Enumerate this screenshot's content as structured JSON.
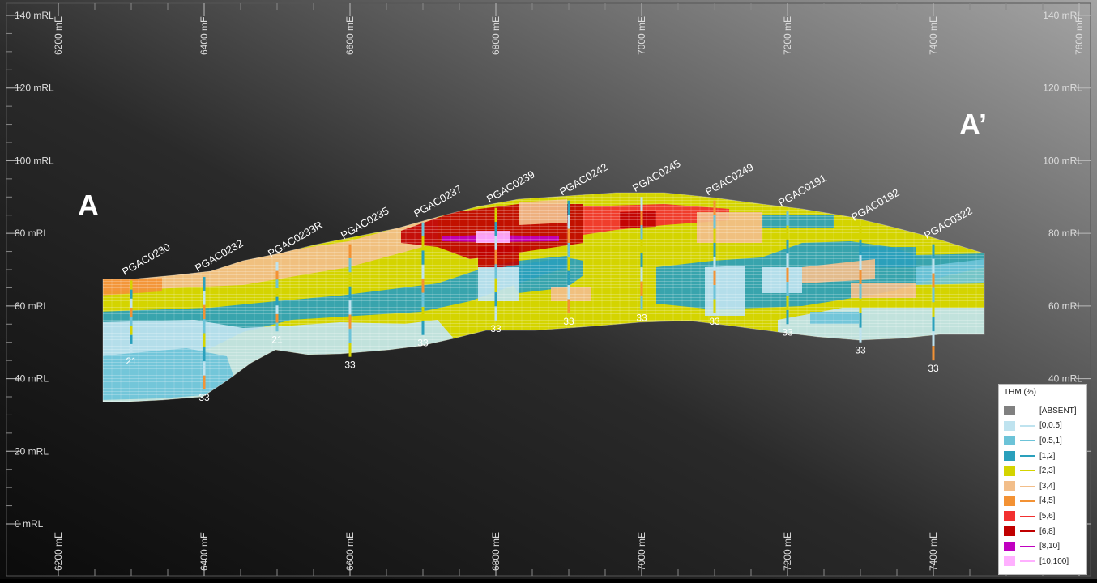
{
  "section": {
    "start_label": "A",
    "end_label": "A’"
  },
  "axes": {
    "x_ticks": [
      "6200 mE",
      "6400 mE",
      "6600 mE",
      "6800 mE",
      "7000 mE",
      "7200 mE",
      "7400 mE",
      "7600 mE"
    ],
    "x_values": [
      6200,
      6400,
      6600,
      6800,
      7000,
      7200,
      7400,
      7600
    ],
    "y_ticks": [
      "0 mRL",
      "20 mRL",
      "40 mRL",
      "60 mRL",
      "80 mRL",
      "100 mRL",
      "120 mRL",
      "140 mRL"
    ],
    "y_values": [
      0,
      20,
      40,
      60,
      80,
      100,
      120,
      140
    ],
    "xlim": [
      6140,
      7640
    ],
    "ylim": [
      -14,
      142
    ]
  },
  "drillholes": [
    {
      "id": "PGAC0230",
      "easting": 6300,
      "collar": 67,
      "depth_label": "21",
      "bottom": 47
    },
    {
      "id": "PGAC0232",
      "easting": 6400,
      "collar": 68,
      "depth_label": "33",
      "bottom": 37
    },
    {
      "id": "PGAC0233R",
      "easting": 6500,
      "collar": 72,
      "depth_label": "21",
      "bottom": 53
    },
    {
      "id": "PGAC0235",
      "easting": 6600,
      "collar": 77,
      "depth_label": "33",
      "bottom": 46
    },
    {
      "id": "PGAC0237",
      "easting": 6700,
      "collar": 83,
      "depth_label": "33",
      "bottom": 52
    },
    {
      "id": "PGAC0239",
      "easting": 6800,
      "collar": 87,
      "depth_label": "33",
      "bottom": 56
    },
    {
      "id": "PGAC0242",
      "easting": 6900,
      "collar": 89,
      "depth_label": "33",
      "bottom": 58
    },
    {
      "id": "PGAC0245",
      "easting": 7000,
      "collar": 90,
      "depth_label": "33",
      "bottom": 59
    },
    {
      "id": "PGAC0249",
      "easting": 7100,
      "collar": 89,
      "depth_label": "33",
      "bottom": 58
    },
    {
      "id": "PGAC0191",
      "easting": 7200,
      "collar": 86,
      "depth_label": "33",
      "bottom": 55
    },
    {
      "id": "PGAC0192",
      "easting": 7300,
      "collar": 82,
      "depth_label": "33",
      "bottom": 50
    },
    {
      "id": "PGAC0322",
      "easting": 7400,
      "collar": 77,
      "depth_label": "33",
      "bottom": 45
    }
  ],
  "legend": {
    "title": "THM (%)",
    "items": [
      {
        "label": "[ABSENT]",
        "color": "#808080"
      },
      {
        "label": "[0,0.5]",
        "color": "#bfe3ef"
      },
      {
        "label": "[0.5,1]",
        "color": "#6cc3d8"
      },
      {
        "label": "[1,2]",
        "color": "#2aa0bc"
      },
      {
        "label": "[2,3]",
        "color": "#d4d400"
      },
      {
        "label": "[3,4]",
        "color": "#f2be8a"
      },
      {
        "label": "[4,5]",
        "color": "#f39234"
      },
      {
        "label": "[5,6]",
        "color": "#f23030"
      },
      {
        "label": "[6,8]",
        "color": "#c00000"
      },
      {
        "label": "[8,10]",
        "color": "#c000c0"
      },
      {
        "label": "[10,100]",
        "color": "#ffb0ff"
      }
    ]
  },
  "colors": {
    "background_dark": "#1a1a1a",
    "background_light": "#9a9a9a",
    "grid": "#ffffff"
  }
}
